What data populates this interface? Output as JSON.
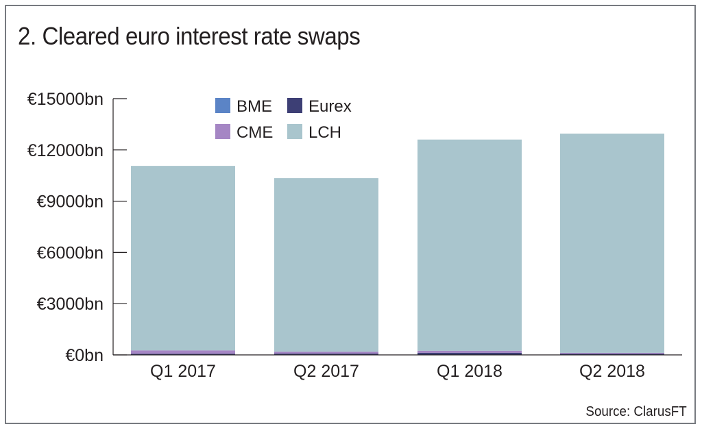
{
  "title": "2. Cleared euro interest rate swaps",
  "source": "Source: ClarusFT",
  "colors": {
    "BME": "#5b84c6",
    "Eurex": "#3d3f75",
    "CME": "#a586c4",
    "LCH": "#a9c5cd",
    "axis": "#231f20",
    "frame": "#777a80"
  },
  "chart_data": {
    "type": "bar",
    "stacked": true,
    "categories": [
      "Q1 2017",
      "Q2 2017",
      "Q1 2018",
      "Q2 2018"
    ],
    "series": [
      {
        "name": "BME",
        "values": [
          5,
          5,
          5,
          5
        ]
      },
      {
        "name": "Eurex",
        "values": [
          60,
          70,
          120,
          60
        ]
      },
      {
        "name": "CME",
        "values": [
          200,
          110,
          120,
          60
        ]
      },
      {
        "name": "LCH",
        "values": [
          10800,
          10160,
          12360,
          12830
        ]
      }
    ],
    "ylim": [
      0,
      15000
    ],
    "yticks": [
      0,
      3000,
      6000,
      9000,
      12000,
      15000
    ],
    "ytick_labels": [
      "€0bn",
      "€3000bn",
      "€6000bn",
      "€9000bn",
      "€12000bn",
      "€15000bn"
    ],
    "xlabel": "",
    "ylabel": "",
    "legend": [
      "BME",
      "Eurex",
      "CME",
      "LCH"
    ],
    "legend_position": "top-left",
    "grid": false
  }
}
